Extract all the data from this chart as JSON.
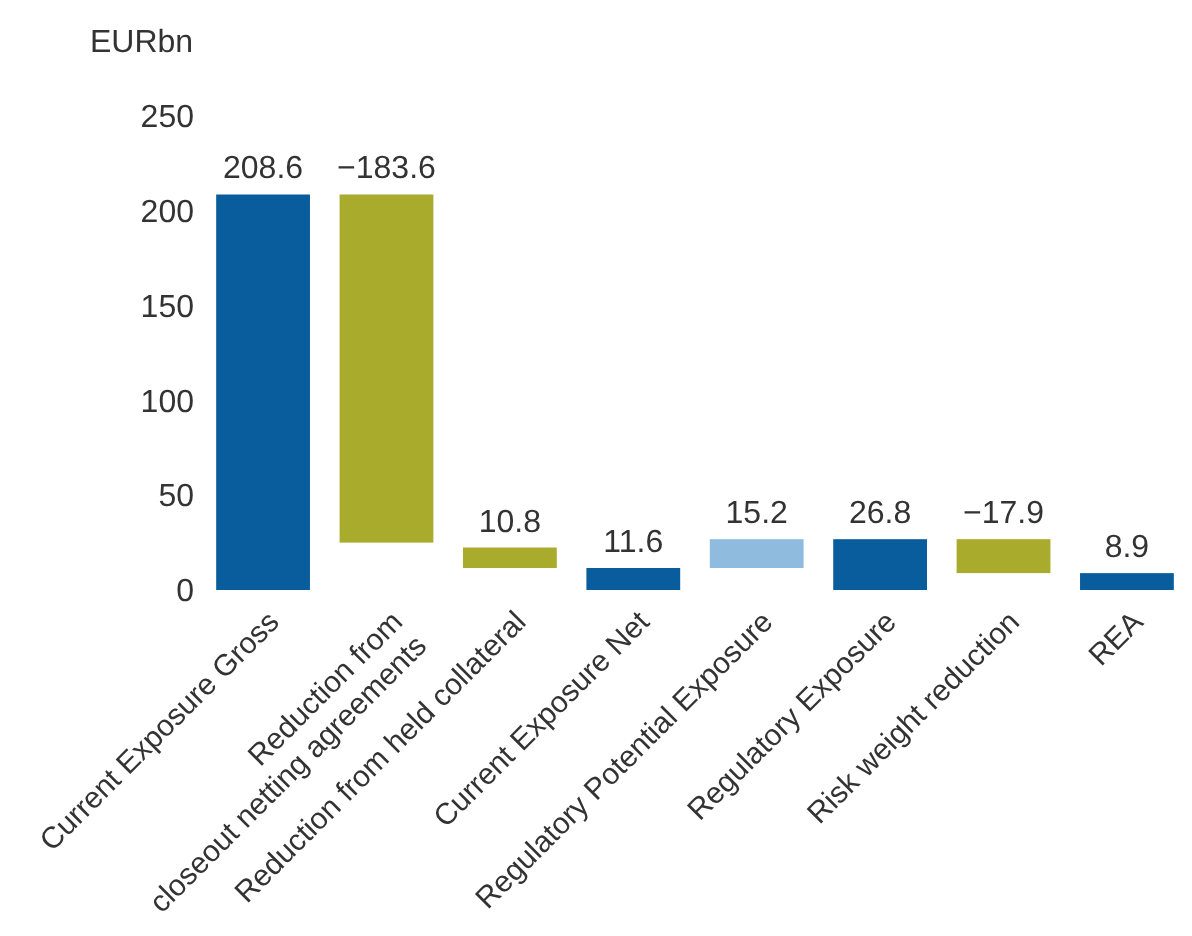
{
  "chart_data": {
    "type": "bar",
    "ylabel": "EURbn",
    "categories": [
      "Current Exposure Gross",
      "Reduction from closeout netting agreements",
      "Reduction from held collateral",
      "Current Exposure Net",
      "Regulatory Potential Exposure",
      "Regulatory Exposure",
      "Risk weight reduction",
      "REA"
    ],
    "values": [
      208.6,
      -183.6,
      -10.8,
      11.6,
      15.2,
      26.8,
      -17.9,
      8.9
    ],
    "base": [
      0,
      208.6,
      22.4,
      0,
      11.6,
      0,
      26.8,
      0
    ],
    "colors": [
      "#0a5d9c",
      "#a8ab2b",
      "#a8ab2b",
      "#0a5d9c",
      "#8fbbde",
      "#0a5d9c",
      "#a8ab2b",
      "#0a5d9c"
    ],
    "value_labels": [
      "208.6",
      "−183.6",
      "10.8",
      "11.6",
      "15.2",
      "26.8",
      "−17.9",
      "8.9"
    ],
    "ylim": [
      0,
      250
    ],
    "yticks": [
      0,
      50,
      100,
      150,
      200,
      250
    ],
    "grid": false
  }
}
